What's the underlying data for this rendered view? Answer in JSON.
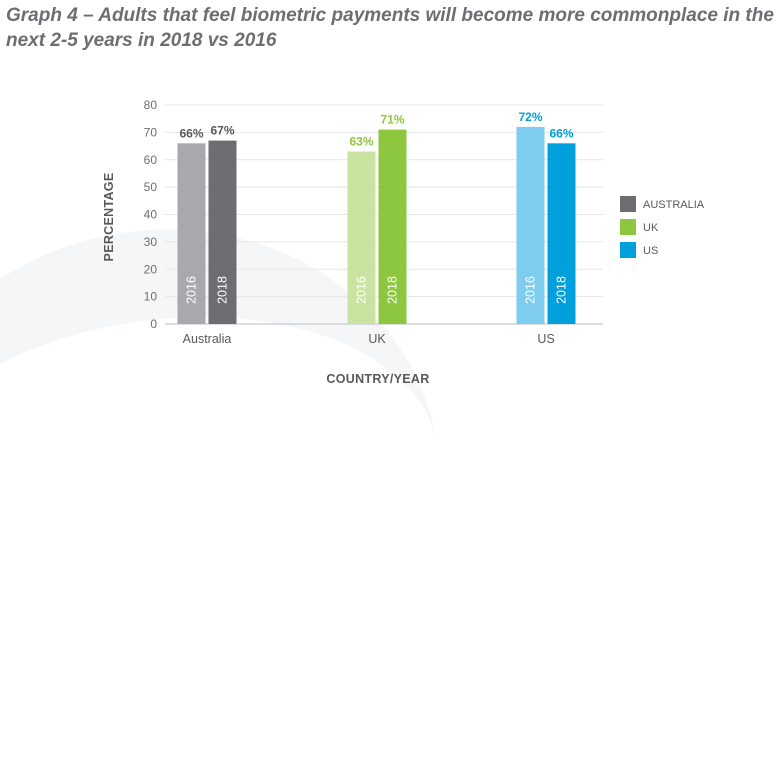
{
  "chart_data": {
    "type": "bar",
    "title": "Graph 4 – Adults that feel biometric payments will become more commonplace in the next 2-5 years in 2018 vs 2016",
    "xlabel": "COUNTRY/YEAR",
    "ylabel": "PERCENTAGE",
    "ylim": [
      0,
      80
    ],
    "yticks": [
      "0",
      "10",
      "20",
      "30",
      "40",
      "50",
      "60",
      "70",
      "80"
    ],
    "grid": true,
    "legend_position": "right",
    "bar_years": [
      "2016",
      "2018"
    ],
    "groups": [
      {
        "category": "Australia",
        "legend": "AUSTRALIA",
        "values": [
          66,
          67
        ],
        "labels": [
          "66%",
          "67%"
        ],
        "colors": [
          "#a7a9ac",
          "#6d6e71"
        ],
        "label_color": "#58595b"
      },
      {
        "category": "UK",
        "legend": "UK",
        "values": [
          63,
          71
        ],
        "labels": [
          "63%",
          "71%"
        ],
        "colors": [
          "#c9e4a0",
          "#8dc63f"
        ],
        "label_color": "#8dc63f"
      },
      {
        "category": "US",
        "legend": "US",
        "values": [
          72,
          66
        ],
        "labels": [
          "72%",
          "66%"
        ],
        "colors": [
          "#7fcdee",
          "#00a0dc"
        ],
        "label_color": "#00a0dc"
      }
    ]
  }
}
